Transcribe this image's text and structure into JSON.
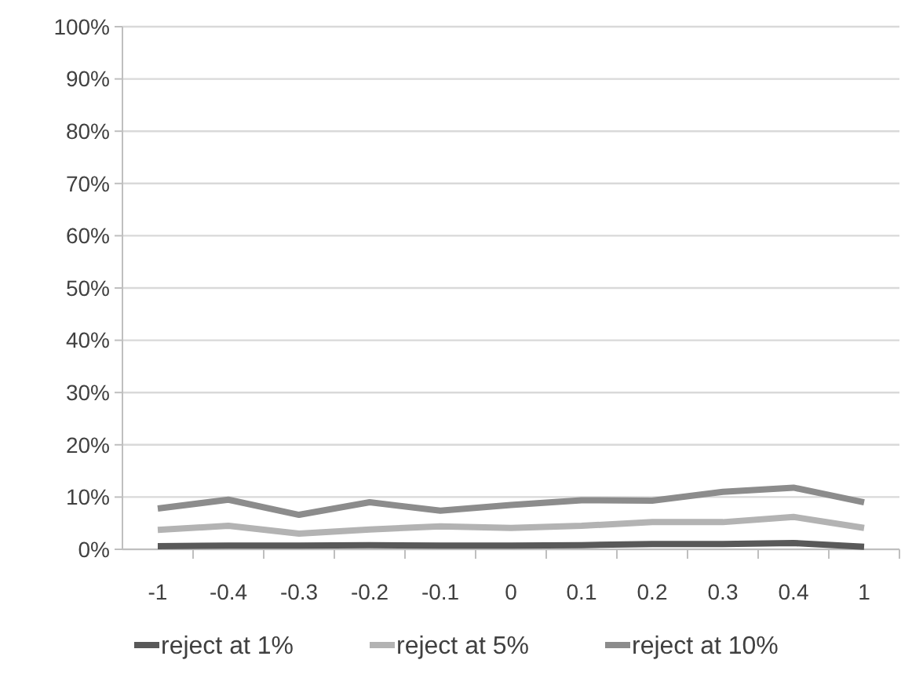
{
  "chart_data": {
    "type": "line",
    "categories": [
      "-1",
      "-0.4",
      "-0.3",
      "-0.2",
      "-0.1",
      "0",
      "0.1",
      "0.2",
      "0.3",
      "0.4",
      "1"
    ],
    "series": [
      {
        "name": "reject at 1%",
        "color": "#595959",
        "values": [
          0.6,
          0.7,
          0.7,
          0.8,
          0.7,
          0.7,
          0.8,
          1.0,
          1.0,
          1.2,
          0.5
        ]
      },
      {
        "name": "reject at 5%",
        "color": "#b3b3b3",
        "values": [
          3.7,
          4.5,
          3.0,
          3.8,
          4.4,
          4.1,
          4.5,
          5.2,
          5.2,
          6.2,
          4.1
        ]
      },
      {
        "name": "reject at 10%",
        "color": "#8c8c8c",
        "values": [
          7.8,
          9.5,
          6.6,
          9.0,
          7.4,
          8.5,
          9.4,
          9.3,
          11.0,
          11.8,
          9.0
        ]
      }
    ],
    "ylim": [
      0,
      100
    ],
    "yticks": [
      {
        "value": 0,
        "label": "0%"
      },
      {
        "value": 10,
        "label": "10%"
      },
      {
        "value": 20,
        "label": "20%"
      },
      {
        "value": 30,
        "label": "30%"
      },
      {
        "value": 40,
        "label": "40%"
      },
      {
        "value": 50,
        "label": "50%"
      },
      {
        "value": 60,
        "label": "60%"
      },
      {
        "value": 70,
        "label": "70%"
      },
      {
        "value": 80,
        "label": "80%"
      },
      {
        "value": 90,
        "label": "90%"
      },
      {
        "value": 100,
        "label": "100%"
      }
    ],
    "grid": "y",
    "legend": "bottom",
    "marker": "none",
    "line_style": "solid"
  }
}
